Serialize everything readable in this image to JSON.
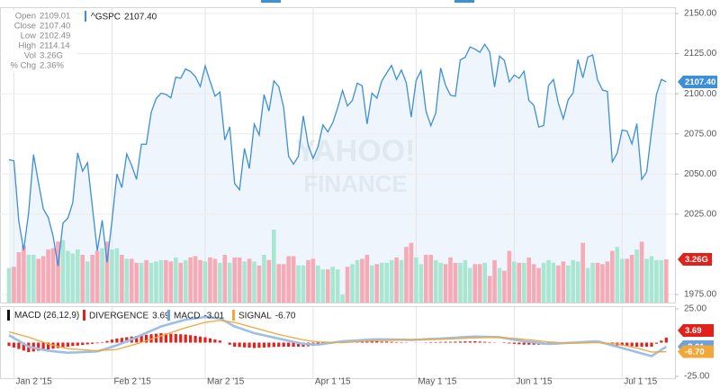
{
  "quote": [
    {
      "label": "Open",
      "value": "2109.01"
    },
    {
      "label": "Close",
      "value": "2107.40"
    },
    {
      "label": "Low",
      "value": "2102.49"
    },
    {
      "label": "High",
      "value": "2114.14"
    },
    {
      "label": "Vol",
      "value": "3.26G"
    },
    {
      "label": "% Chg",
      "value": "2.36%"
    }
  ],
  "chart_data": {
    "type": "stock",
    "watermark": [
      "YAHOO!",
      "FINANCE"
    ],
    "categories": [
      null,
      "Jan 2 '15",
      null,
      null,
      null,
      null,
      null,
      null,
      null,
      null,
      null,
      null,
      null,
      null,
      null,
      null,
      null,
      null,
      null,
      null,
      null,
      "Feb 2 '15",
      null,
      null,
      null,
      null,
      null,
      null,
      null,
      null,
      null,
      null,
      null,
      null,
      null,
      null,
      null,
      null,
      null,
      null,
      "Mar 2 '15",
      null,
      null,
      null,
      null,
      null,
      null,
      null,
      null,
      null,
      null,
      null,
      null,
      null,
      null,
      null,
      null,
      null,
      null,
      null,
      null,
      null,
      "Apr 1 '15",
      null,
      null,
      null,
      null,
      null,
      null,
      null,
      null,
      null,
      null,
      null,
      null,
      null,
      null,
      null,
      null,
      null,
      null,
      null,
      null,
      "May 1 '15",
      null,
      null,
      null,
      null,
      null,
      null,
      null,
      null,
      null,
      null,
      null,
      null,
      null,
      null,
      null,
      null,
      null,
      null,
      null,
      "Jun 1 '15",
      null,
      null,
      null,
      null,
      null,
      null,
      null,
      null,
      null,
      null,
      null,
      null,
      null,
      null,
      null,
      null,
      null,
      null,
      null,
      null,
      null,
      "Jul 1 '15",
      null,
      null,
      null,
      null,
      null,
      null,
      null,
      null,
      null
    ],
    "series": [
      {
        "name": "^GSPC",
        "color": "#3d8fd6",
        "fill": "#eef5fc",
        "last_label": "2107.40",
        "values": [
          2058.9,
          2058.2,
          2020.58,
          2002.61,
          2025.9,
          2062.14,
          2044.81,
          2028.26,
          2023.03,
          2011.27,
          1992.67,
          2019.42,
          2022.55,
          2032.12,
          2063.15,
          2051.82,
          2057.09,
          2029.55,
          2002.16,
          2021.25,
          1994.99,
          2020.85,
          2050.03,
          2041.51,
          2062.52,
          2055.47,
          2046.74,
          2068.59,
          2068.53,
          2088.48,
          2096.99,
          2100.34,
          2099.68,
          2097.45,
          2110.3,
          2109.66,
          2115.48,
          2113.86,
          2110.74,
          2104.5,
          2117.39,
          2107.78,
          2098.53,
          2101.04,
          2071.26,
          2079.43,
          2044.16,
          2040.24,
          2065.95,
          2053.4,
          2081.19,
          2074.28,
          2099.5,
          2089.27,
          2108.1,
          2104.42,
          2091.5,
          2061.05,
          2056.15,
          2061.02,
          2086.24,
          2067.89,
          2059.69,
          2066.96,
          2080.62,
          2076.33,
          2081.9,
          2091.18,
          2102.06,
          2092.43,
          2095.84,
          2106.63,
          2104.99,
          2081.18,
          2100.4,
          2097.29,
          2107.96,
          2112.93,
          2117.69,
          2108.92,
          2114.76,
          2106.85,
          2085.51,
          2108.29,
          2114.49,
          2089.46,
          2080.15,
          2088.0,
          2116.1,
          2105.33,
          2099.12,
          2098.48,
          2121.1,
          2122.73,
          2129.2,
          2127.83,
          2125.85,
          2130.82,
          2126.06,
          2104.2,
          2123.48,
          2120.79,
          2107.39,
          2111.73,
          2109.6,
          2114.07,
          2095.84,
          2092.83,
          2079.28,
          2080.15,
          2105.2,
          2108.86,
          2094.11,
          2084.43,
          2096.29,
          2100.44,
          2121.24,
          2109.99,
          2122.85,
          2124.2,
          2108.58,
          2102.31,
          2101.49,
          2057.64,
          2063.11,
          2077.42,
          2076.78,
          2068.76,
          2081.34,
          2046.68,
          2051.31,
          2076.62,
          2099.6,
          2108.95,
          2107.4
        ]
      }
    ],
    "ylim": [
      1975,
      2150
    ],
    "yticks": [
      {
        "value": 1975,
        "label": "1975.00"
      },
      {
        "value": 2025,
        "label": "2025.00"
      },
      {
        "value": 2050,
        "label": "2050.00"
      },
      {
        "value": 2075,
        "label": "2075.00"
      },
      {
        "value": 2100,
        "label": "2100.00"
      },
      {
        "value": 2125,
        "label": "2125.00"
      },
      {
        "value": 2150,
        "label": "2150.00"
      }
    ],
    "grid": true,
    "volume": {
      "up_color": "#a9e6d1",
      "down_color": "#f6aab6",
      "ylim": [
        0,
        22
      ],
      "last_label": "3.26G",
      "values": [
        2.6,
        2.7,
        3.8,
        4.3,
        3.6,
        3.6,
        3.3,
        3.5,
        4.0,
        4.1,
        4.6,
        4.7,
        3.9,
        3.7,
        4.0,
        3.6,
        3.1,
        3.6,
        3.9,
        4.1,
        4.6,
        4.0,
        4.1,
        3.6,
        3.3,
        3.3,
        3.0,
        3.0,
        3.2,
        3.0,
        3.1,
        3.2,
        3.2,
        3.1,
        3.4,
        3.0,
        3.2,
        3.4,
        3.5,
        3.2,
        3.1,
        3.4,
        3.3,
        3.0,
        3.6,
        3.0,
        3.4,
        3.4,
        3.1,
        3.3,
        3.1,
        2.8,
        3.6,
        3.2,
        5.5,
        2.9,
        2.9,
        3.5,
        3.5,
        2.8,
        2.8,
        3.2,
        3.3,
        2.8,
        2.5,
        2.5,
        2.7,
        2.5,
        0.6,
        2.7,
        2.9,
        3.2,
        3.3,
        3.6,
        2.8,
        2.9,
        3.0,
        3.0,
        3.2,
        3.4,
        3.2,
        4.2,
        4.5,
        3.4,
        2.9,
        3.6,
        3.6,
        3.2,
        3.0,
        2.9,
        3.4,
        3.0,
        3.0,
        3.2,
        2.6,
        2.9,
        2.9,
        3.0,
        2.0,
        3.2,
        2.6,
        2.4,
        3.9,
        3.1,
        3.0,
        3.0,
        3.4,
        2.9,
        2.6,
        3.0,
        3.2,
        3.0,
        2.8,
        3.1,
        2.8,
        3.2,
        3.1,
        4.5,
        2.6,
        3.0,
        3.0,
        2.9,
        3.1,
        3.9,
        4.2,
        3.3,
        3.3,
        3.6,
        4.0,
        4.6,
        3.3,
        3.5,
        3.2,
        3.2,
        3.26
      ]
    },
    "macd": {
      "title": "MACD (26,12,9)",
      "ylim": [
        -25,
        25
      ],
      "yticks": [
        {
          "value": 25,
          "label": "25.00"
        },
        {
          "value": -25,
          "label": "-25.00"
        }
      ],
      "series": [
        {
          "name": "DIVERGENCE",
          "color": "#e3211b",
          "last_label": "3.69",
          "values": [
            -2.5,
            -3.6,
            -4.7,
            -5.9,
            -7.0,
            -6.6,
            -6.0,
            -5.6,
            -5.0,
            -4.5,
            -4.0,
            -3.5,
            -3.0,
            -2.5,
            -2.2,
            -1.7,
            -1.3,
            -0.9,
            -0.5,
            0.4,
            1.2,
            2.2,
            3.0,
            3.5,
            4.0,
            4.5,
            5.0,
            5.4,
            5.8,
            6.2,
            6.6,
            7.0,
            6.8,
            6.6,
            6.4,
            6.2,
            6.0,
            5.5,
            5,
            4.5,
            4,
            3.2,
            2.3,
            1.5,
            0,
            -1.5,
            -3,
            -3.2,
            -3.5,
            -3.7,
            -4,
            -3.8,
            -3.6,
            -3.4,
            -3.2,
            -3,
            -3,
            -3,
            -3,
            -3,
            -3,
            -2.7,
            -2.3,
            -2,
            -1.4,
            -0.8,
            -0.2,
            0.4,
            1,
            1,
            1,
            1,
            1,
            1,
            1,
            1,
            0.8,
            0.8,
            0.6,
            0.4,
            0.3,
            0.2,
            0,
            0.1,
            0.1,
            0.2,
            0.4,
            0.4,
            0.5,
            0.6,
            0.6,
            0.7,
            0.8,
            0.9,
            0.9,
            1,
            0.8,
            0.6,
            0.4,
            0.2,
            0,
            -0.3,
            -0.6,
            -0.9,
            -1.2,
            -1.5,
            -1.5,
            -1.5,
            -1.5,
            -1.5,
            -1.5,
            -1.1,
            -0.7,
            -0.3,
            0.1,
            0.5,
            0.6,
            0.7,
            0.8,
            0.9,
            1,
            0.3,
            -0.5,
            -1.2,
            -2,
            -2.2,
            -2.5,
            -2.7,
            -3,
            -3,
            -3,
            -3,
            -0.8,
            1.5,
            3.69
          ]
        },
        {
          "name": "MACD",
          "color": "#9bbfe6",
          "last_label": "-3.01",
          "values": [
            5.5,
            3.4,
            1.3,
            -0.9,
            -3.0,
            -3.8,
            -4.5,
            -5.3,
            -6.0,
            -6.4,
            -6.8,
            -7.1,
            -7.5,
            -7.3,
            -7.2,
            -7.0,
            -6.8,
            -6.7,
            -6.5,
            -5.4,
            -4.3,
            -3.1,
            -2.0,
            -0.5,
            1.0,
            2.5,
            4.0,
            5.6,
            7.2,
            8.8,
            10.4,
            12,
            13,
            14,
            15,
            16,
            17,
            17.5,
            18,
            18.5,
            19,
            18.7,
            18.3,
            18,
            16,
            14,
            12,
            10.8,
            9.5,
            8.3,
            7,
            6.2,
            5.4,
            4.6,
            3.8,
            3,
            2.2,
            1.4,
            0.6,
            -0.2,
            -1,
            -1.2,
            -1.3,
            -1.5,
            -1,
            -0.5,
            0,
            0.5,
            1,
            1.2,
            1.4,
            1.6,
            1.9,
            2.1,
            2.3,
            2.5,
            2.4,
            2.4,
            2.3,
            2.2,
            2.2,
            2.1,
            2,
            2.2,
            2.3,
            2.5,
            2.7,
            2.8,
            3,
            3.2,
            3.4,
            3.6,
            3.9,
            4.1,
            4.3,
            4.5,
            4.4,
            4.3,
            4.2,
            4.1,
            4,
            3.4,
            2.8,
            2.2,
            1.6,
            1,
            0.6,
            0.2,
            -0.2,
            -0.6,
            -1,
            -0.8,
            -0.6,
            -0.4,
            -0.2,
            0,
            0.2,
            0.4,
            0.6,
            0.8,
            1,
            0,
            -1,
            -2,
            -3,
            -4,
            -5,
            -6,
            -7,
            -8,
            -9,
            -10,
            -7.7,
            -5.3,
            -3.01
          ]
        },
        {
          "name": "SIGNAL",
          "color": "#f1a73a",
          "last_label": "-6.70",
          "values": [
            8,
            7,
            6,
            5,
            4,
            2.8,
            1.5,
            0.3,
            -1,
            -1.9,
            -2.8,
            -3.6,
            -4.5,
            -4.8,
            -5,
            -5.3,
            -5.5,
            -5.8,
            -6,
            -5.8,
            -5.5,
            -5.3,
            -5,
            -4,
            -3,
            -2,
            -1,
            0.2,
            1.4,
            2.6,
            3.8,
            5,
            6.2,
            7.4,
            8.6,
            9.8,
            11,
            12,
            13,
            14,
            15,
            15.5,
            16,
            16.5,
            16,
            15.5,
            15,
            14,
            13,
            12,
            11,
            10,
            9,
            8,
            7,
            6,
            5.2,
            4.4,
            3.6,
            2.8,
            2,
            1.5,
            1,
            0.5,
            0.4,
            0.3,
            0.2,
            0.1,
            0,
            0.2,
            0.4,
            0.6,
            0.9,
            1.1,
            1.3,
            1.5,
            1.6,
            1.6,
            1.7,
            1.8,
            1.9,
            1.9,
            2,
            2.1,
            2.2,
            2.3,
            2.3,
            2.4,
            2.5,
            2.6,
            2.8,
            2.9,
            3.1,
            3.2,
            3.4,
            3.5,
            3.6,
            3.7,
            3.8,
            3.9,
            4,
            3.7,
            3.4,
            3.1,
            2.8,
            2.5,
            2.1,
            1.7,
            1.3,
            0.9,
            0.5,
            0.3,
            0.1,
            -0.1,
            -0.3,
            -0.5,
            -0.4,
            -0.3,
            -0.2,
            -0.1,
            0,
            -0.3,
            -0.5,
            -0.8,
            -1,
            -1.8,
            -2.5,
            -3.3,
            -4,
            -5,
            -6,
            -7,
            -6.9,
            -6.8,
            -6.7
          ]
        }
      ]
    }
  }
}
